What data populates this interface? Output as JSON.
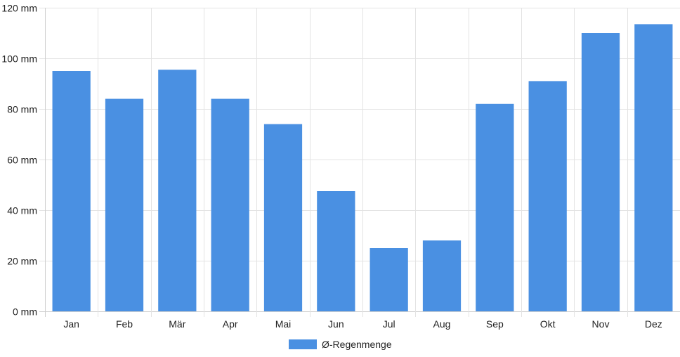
{
  "chart_data": {
    "type": "bar",
    "categories": [
      "Jan",
      "Feb",
      "Mär",
      "Apr",
      "Mai",
      "Jun",
      "Jul",
      "Aug",
      "Sep",
      "Okt",
      "Nov",
      "Dez"
    ],
    "series": [
      {
        "name": "Ø-Regenmenge",
        "values": [
          95,
          84,
          95.5,
          84,
          74,
          47.5,
          25,
          28,
          82,
          91,
          110,
          113.5
        ]
      }
    ],
    "ylim": [
      0,
      120
    ],
    "y_ticks": [
      "0 mm",
      "20 mm",
      "40 mm",
      "60 mm",
      "80 mm",
      "100 mm",
      "120 mm"
    ],
    "y_tick_values": [
      0,
      20,
      40,
      60,
      80,
      100,
      120
    ],
    "unit": "mm",
    "grid": true,
    "legend_position": "bottom",
    "colors": {
      "bar": "#4a90e2",
      "grid": "#e3e3e3"
    }
  }
}
